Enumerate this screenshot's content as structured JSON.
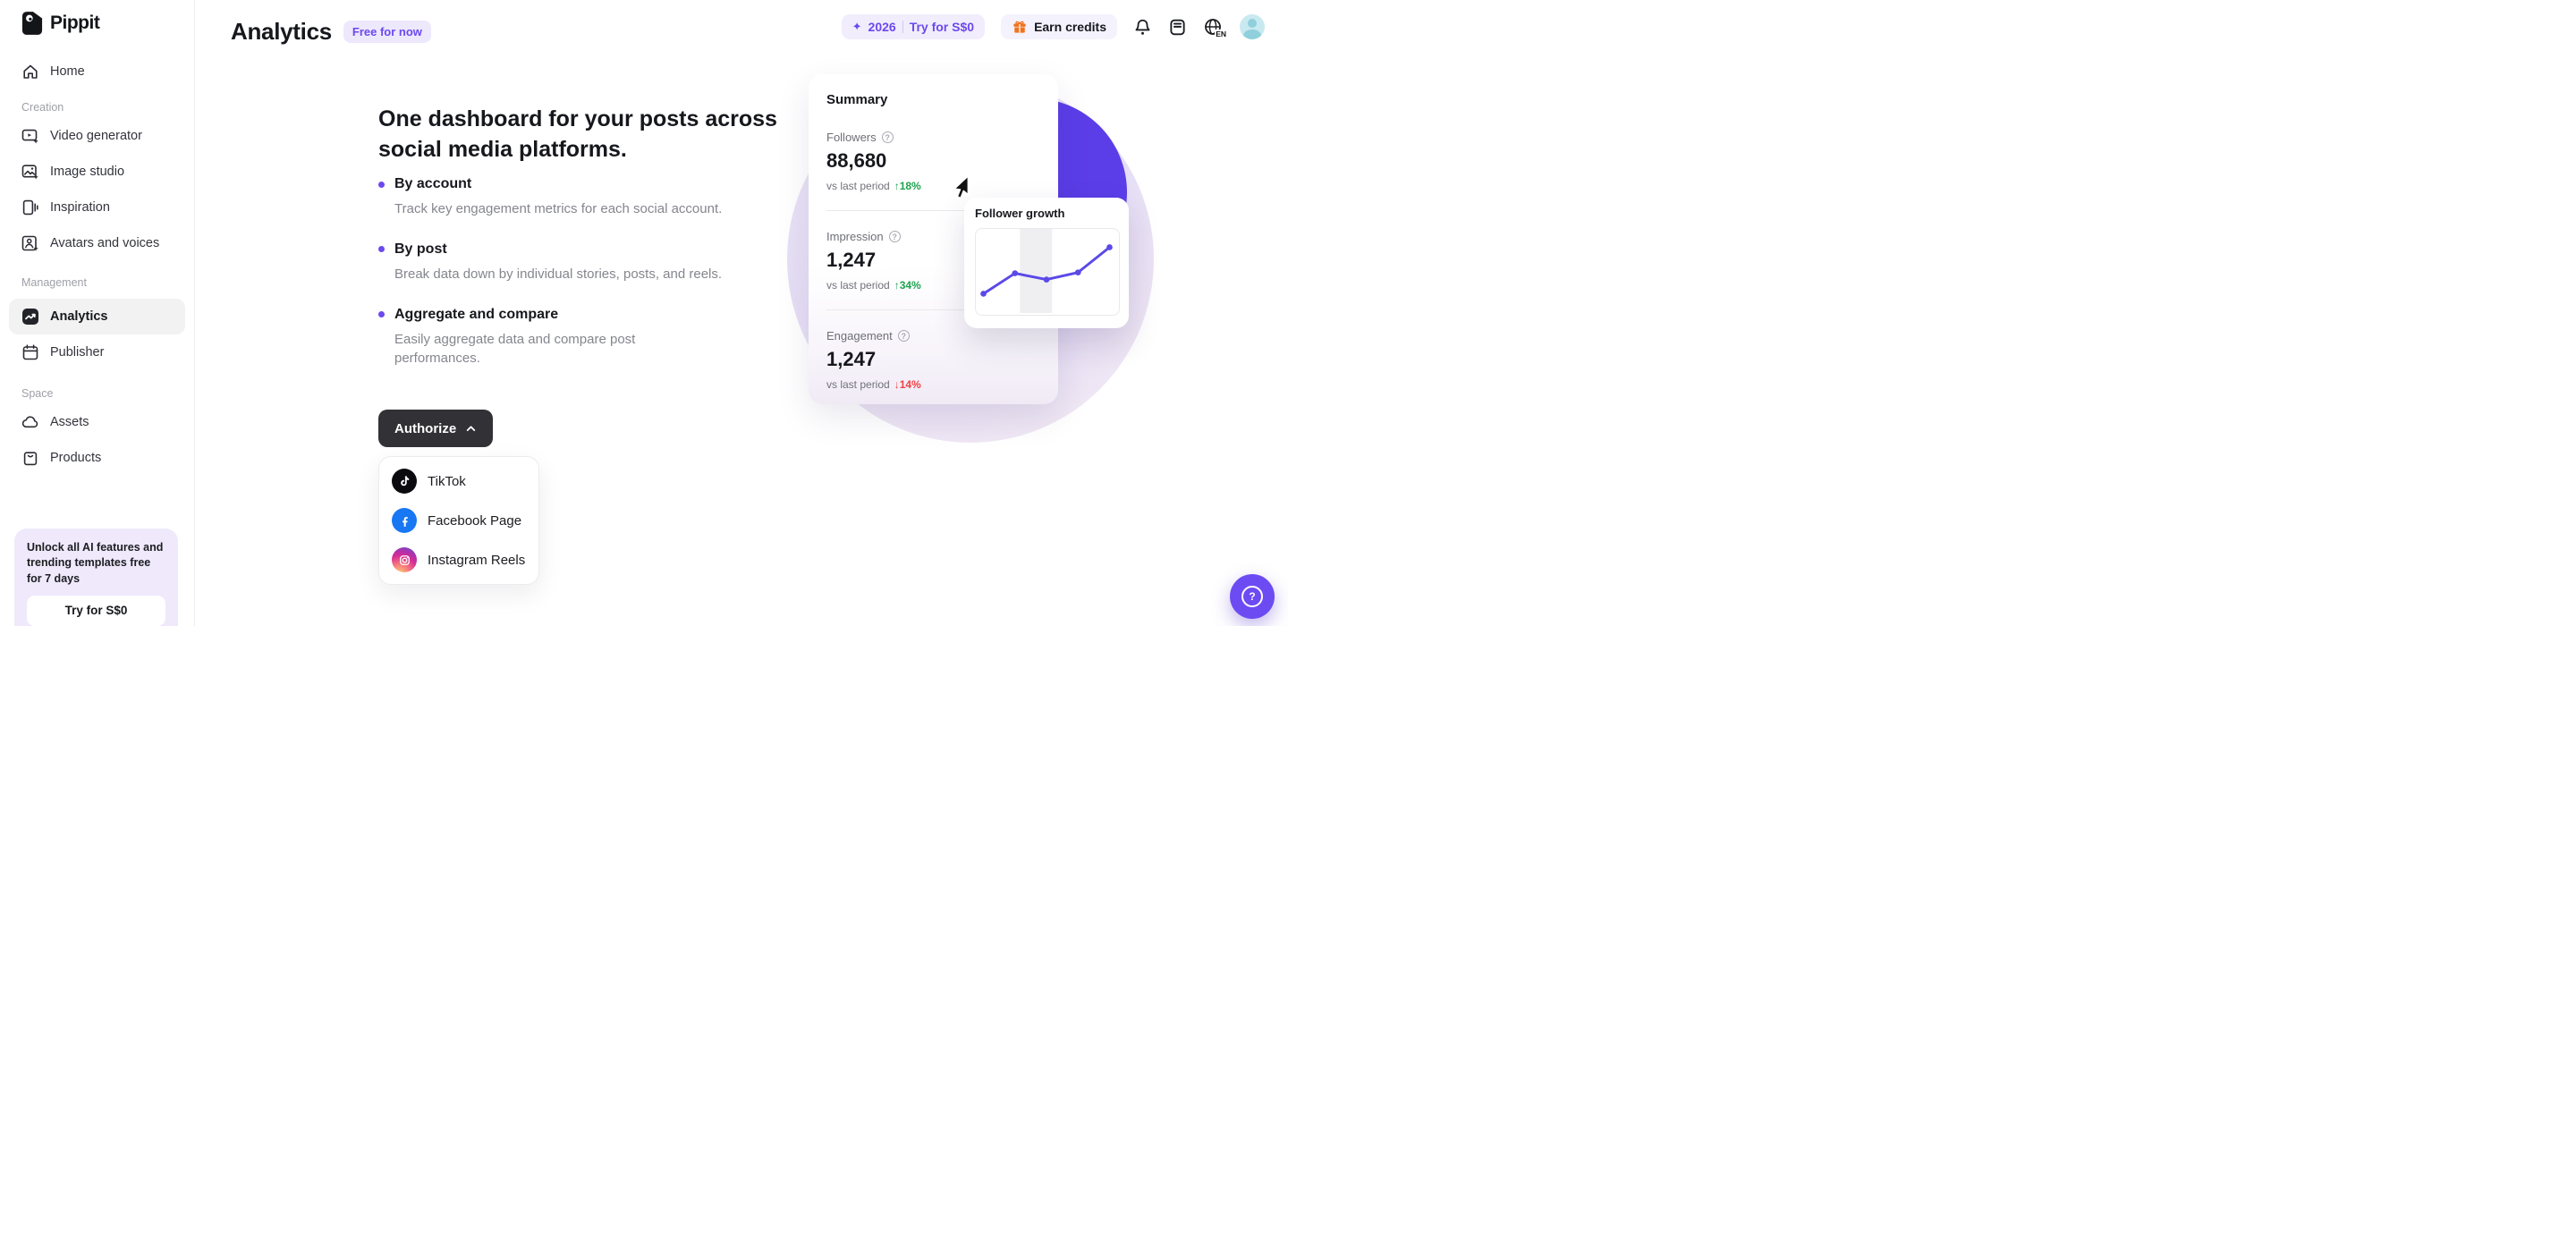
{
  "brand": {
    "name": "Pippit"
  },
  "sidebar": {
    "home": {
      "label": "Home"
    },
    "sections": [
      {
        "label": "Creation",
        "items": [
          {
            "label": "Video generator"
          },
          {
            "label": "Image studio"
          },
          {
            "label": "Inspiration"
          },
          {
            "label": "Avatars and voices"
          }
        ]
      },
      {
        "label": "Management",
        "items": [
          {
            "label": "Analytics",
            "active": true
          },
          {
            "label": "Publisher"
          }
        ]
      },
      {
        "label": "Space",
        "items": [
          {
            "label": "Assets"
          },
          {
            "label": "Products"
          }
        ]
      }
    ],
    "promo": {
      "message": "Unlock all AI features and trending templates free for 7 days",
      "cta": "Try for S$0"
    }
  },
  "header": {
    "title": "Analytics",
    "badge": "Free for now",
    "trial_pill": {
      "sparkle": "✦",
      "count": "2026",
      "cta": "Try for S$0"
    },
    "earn_credits_label": "Earn credits",
    "language_label": "EN"
  },
  "main": {
    "heading": "One dashboard for your posts across social media platforms.",
    "features": [
      {
        "title": "By account",
        "description": "Track key engagement metrics for each social account."
      },
      {
        "title": "By post",
        "description": "Break data down by individual stories, posts, and reels."
      },
      {
        "title": "Aggregate and compare",
        "description": "Easily aggregate data and compare post performances."
      }
    ],
    "authorize_label": "Authorize",
    "platforms": [
      {
        "name": "TikTok"
      },
      {
        "name": "Facebook Page"
      },
      {
        "name": "Instagram Reels"
      }
    ]
  },
  "summary_card": {
    "title": "Summary",
    "metrics": [
      {
        "label": "Followers",
        "value": "88,680",
        "compare_label": "vs last period",
        "arrow": "↑",
        "delta": "18%",
        "direction": "up"
      },
      {
        "label": "Impression",
        "value": "1,247",
        "compare_label": "vs last period",
        "arrow": "↑",
        "delta": "34%",
        "direction": "up"
      },
      {
        "label": "Engagement",
        "value": "1,247",
        "compare_label": "vs last period",
        "arrow": "↓",
        "delta": "14%",
        "direction": "down"
      }
    ]
  },
  "chart_data": {
    "type": "line",
    "title": "Follower growth",
    "x": [
      1,
      2,
      3,
      4,
      5
    ],
    "values": [
      20,
      46,
      38,
      47,
      79
    ],
    "ylim": [
      0,
      100
    ],
    "line_color": "#5b49e8",
    "point_color": "#5b49e8",
    "highlight_band": {
      "from_x_frac": 0.31,
      "to_x_frac": 0.54
    },
    "axes": "none",
    "grid": false,
    "legend": "none"
  },
  "floating": {
    "help": "?"
  },
  "colors": {
    "accent_purple": "#6c49ee",
    "circle_purple": "#5b3ee8",
    "positive_green": "#1ea450",
    "negative_red": "#f04144",
    "gift_orange": "#f0731f"
  }
}
